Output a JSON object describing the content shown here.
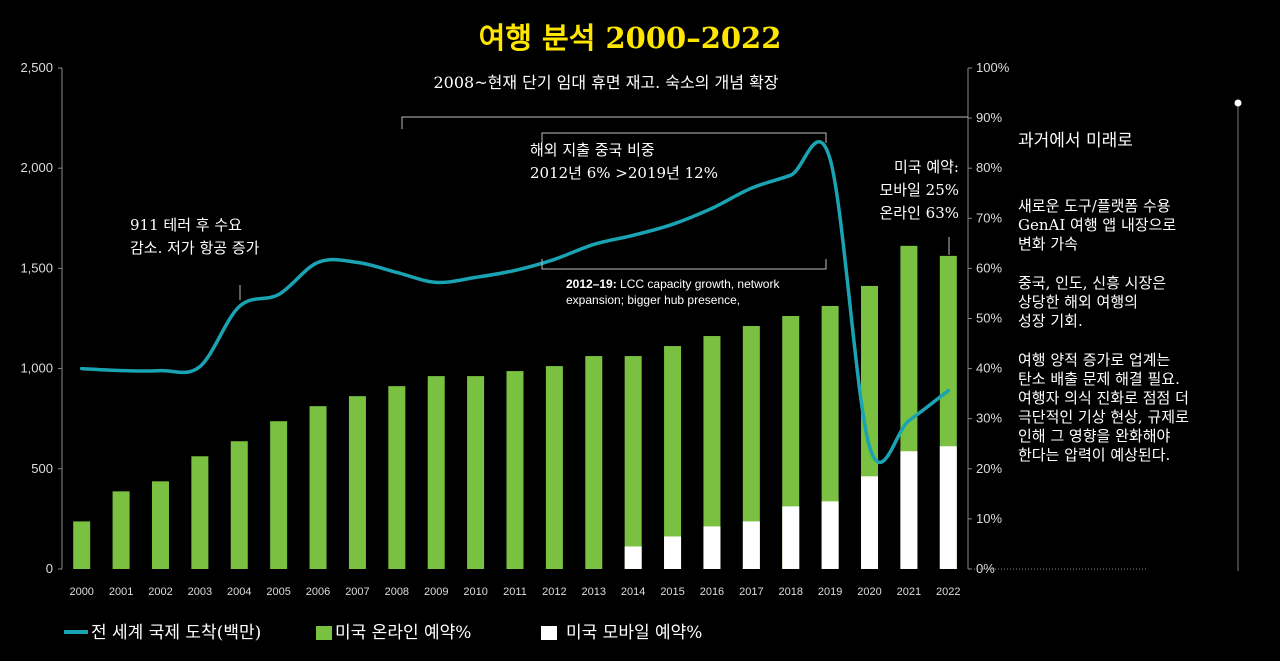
{
  "chart_data": {
    "type": "bar",
    "title": "여행 분석 2000–2022",
    "categories": [
      "2000",
      "2001",
      "2002",
      "2003",
      "2004",
      "2005",
      "2006",
      "2007",
      "2008",
      "2009",
      "2010",
      "2011",
      "2012",
      "2013",
      "2014",
      "2015",
      "2016",
      "2017",
      "2018",
      "2019",
      "2020",
      "2021",
      "2022"
    ],
    "left_axis": {
      "ticks": [
        "0",
        "500",
        "1,000",
        "1,500",
        "2,000",
        "2,500"
      ],
      "range": [
        0,
        2500
      ]
    },
    "right_axis": {
      "ticks": [
        "0%",
        "10%",
        "20%",
        "30%",
        "40%",
        "50%",
        "60%",
        "70%",
        "80%",
        "90%",
        "100%"
      ],
      "range": [
        0,
        100
      ]
    },
    "series": [
      {
        "name": "전 세계 국제 도착(백만)",
        "type": "line",
        "axis": "left",
        "color": "#1aa3b3",
        "values": [
          1000,
          990,
          990,
          1010,
          1310,
          1370,
          1530,
          1530,
          1480,
          1430,
          1455,
          1490,
          1545,
          1620,
          1665,
          1720,
          1800,
          1900,
          1965,
          2045,
          610,
          740,
          890
        ]
      },
      {
        "name": "미국 온라인 예약%",
        "type": "bar",
        "axis": "right",
        "color": "#7ac142",
        "values": [
          9.5,
          15.5,
          17.5,
          22.5,
          25.5,
          29.5,
          32.5,
          34.5,
          36.5,
          38.5,
          38.5,
          39.5,
          40.5,
          42.5,
          42.5,
          44.5,
          46.5,
          48.5,
          50.5,
          52.5,
          56.5,
          64.5,
          62.5
        ]
      },
      {
        "name": "미국 모바일 예약%",
        "type": "bar",
        "axis": "right",
        "color": "#ffffff",
        "values": [
          0,
          0,
          0,
          0,
          0,
          0,
          0,
          0,
          0,
          0,
          0,
          0,
          0,
          0,
          4.5,
          6.5,
          8.5,
          9.5,
          12.5,
          13.5,
          18.5,
          23.5,
          24.5
        ]
      }
    ],
    "annotations": {
      "a2008": "2008~현재 단기 임대 휴면 재고. 숙소의 개념 확장",
      "china_1": "해외 지출 중국 비중",
      "china_2": "2012년 6% >2019년 12%",
      "terror_1": "911 테러 후 수요",
      "terror_2": "감소. 저가 항공 증가",
      "lcc_bold": "2012–19:",
      "lcc_rest": " LCC capacity growth, network",
      "lcc_2": "expansion; bigger hub presence,",
      "us_1": "미국 예약:",
      "us_2": "모바일 25%",
      "us_3": "온라인 63%"
    },
    "grid": false,
    "legend_position": "bottom-left"
  },
  "panel": {
    "heading": "과거에서 미래로",
    "p1": [
      "새로운 도구/플랫폼 수용",
      "GenAI 여행 앱 내장으로",
      "변화 가속"
    ],
    "p2": [
      "중국, 인도, 신흥 시장은",
      "상당한 해외 여행의",
      "성장 기회."
    ],
    "p3": [
      "여행 양적 증가로 업계는",
      "탄소 배출 문제 해결 필요.",
      "여행자 의식 진화로 점점 더",
      "극단적인 기상 현상, 규제로",
      "인해 그 영향을 완화해야",
      "한다는 압력이 예상된다."
    ]
  },
  "colors": {
    "background": "#000000",
    "title": "#ffe600",
    "line": "#1aa3b3",
    "online": "#7ac142",
    "mobile": "#ffffff"
  }
}
